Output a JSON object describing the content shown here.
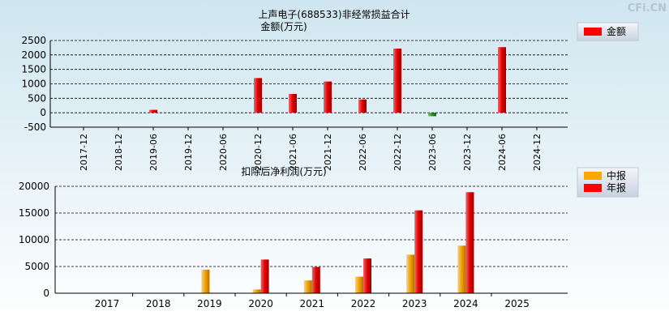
{
  "watermark": "CFi.CN",
  "chart_data": [
    {
      "type": "bar",
      "title": "上声电子(688533)非经常损益合计",
      "subtitle": "金额(万元)",
      "categories": [
        "2017-12",
        "2018-12",
        "2019-06",
        "2019-12",
        "2020-06",
        "2020-12",
        "2021-06",
        "2021-12",
        "2022-06",
        "2022-12",
        "2023-06",
        "2023-12",
        "2024-06",
        "2024-12"
      ],
      "series": [
        {
          "name": "金额",
          "color": "#ff0000",
          "negative_color": "#2e8b2e",
          "values": [
            null,
            null,
            100,
            null,
            null,
            1200,
            650,
            1080,
            460,
            2220,
            -120,
            null,
            2270,
            null
          ]
        }
      ],
      "yticks": [
        2500,
        2000,
        1500,
        1000,
        500,
        0,
        -500
      ],
      "ylim": [
        -500,
        2500
      ],
      "grid": true,
      "legend": "top-right"
    },
    {
      "type": "bar",
      "title": "扣除后净利润(万元)",
      "categories": [
        "2017",
        "2018",
        "2019",
        "2020",
        "2021",
        "2022",
        "2023",
        "2024",
        "2025"
      ],
      "series": [
        {
          "name": "中报",
          "color": "#ffa500",
          "values": [
            null,
            null,
            4400,
            700,
            2400,
            3100,
            7200,
            8900,
            null
          ]
        },
        {
          "name": "年报",
          "color": "#ff0000",
          "values": [
            null,
            null,
            null,
            6300,
            4900,
            6500,
            15500,
            18900,
            null
          ]
        }
      ],
      "yticks": [
        20000,
        15000,
        10000,
        5000,
        0
      ],
      "ylim": [
        0,
        20000
      ],
      "grid": true,
      "legend": "top-right"
    }
  ]
}
